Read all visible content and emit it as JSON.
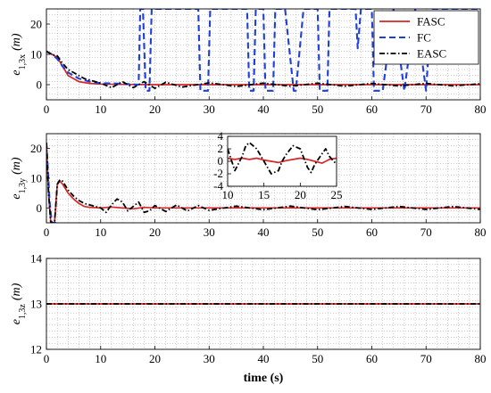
{
  "colors": {
    "FASC": "#d62728",
    "FC": "#1f3fd6",
    "EASC": "#000000",
    "grid": "#9a9a9a"
  },
  "chart_data": [
    {
      "type": "line",
      "ylabel_main": "e",
      "ylabel_sub": "1,3x",
      "ylabel_unit": "(m)",
      "xlim": [
        0,
        80
      ],
      "ylim": [
        -5,
        25
      ],
      "xticks": [
        0,
        10,
        20,
        30,
        40,
        50,
        60,
        70,
        80
      ],
      "yticks": [
        0,
        10,
        20
      ],
      "grid": true,
      "legend_position": "top-right",
      "series": [
        {
          "name": "FASC",
          "style": "solid",
          "x": [
            0,
            1,
            2,
            3,
            4,
            5,
            6,
            8,
            10,
            14,
            20,
            30,
            40,
            50,
            60,
            70,
            80
          ],
          "y": [
            11,
            10,
            9,
            6,
            3,
            2,
            1,
            0.4,
            0.2,
            0.1,
            0,
            0,
            0,
            0,
            0,
            0,
            0
          ]
        },
        {
          "name": "FC",
          "style": "dashed",
          "x": [
            0,
            1,
            2,
            3,
            4,
            5,
            6,
            7,
            8,
            10,
            14,
            17,
            17.3,
            17.8,
            18.3,
            19,
            19.4,
            28,
            28.4,
            29.8,
            30.2,
            31,
            37,
            37.4,
            38.2,
            38.6,
            40,
            40.4,
            41.8,
            42.2,
            44,
            45.6,
            46,
            47.4,
            47.8,
            50,
            50.4,
            51.8,
            52.2,
            57,
            57.4,
            58,
            60,
            60.4,
            62,
            64,
            66,
            68,
            70,
            71,
            80
          ],
          "y": [
            11,
            10,
            8.5,
            6,
            4,
            3,
            2,
            1.5,
            1,
            0.5,
            0.3,
            0,
            25,
            25,
            -2,
            -2,
            25,
            25,
            -2,
            -2,
            25,
            25,
            25,
            -2,
            -2,
            25,
            25,
            -2,
            -2,
            25,
            25,
            -2,
            -2,
            25,
            25,
            25,
            -2,
            -2,
            25,
            25,
            12,
            25,
            25,
            -2,
            -2,
            25,
            -2,
            25,
            -2,
            25,
            25
          ]
        },
        {
          "name": "EASC",
          "style": "dashdot",
          "x": [
            0,
            1,
            2,
            3,
            4,
            5,
            6,
            7,
            8,
            10,
            12,
            14,
            16,
            18,
            20,
            22,
            25,
            30,
            35,
            40,
            45,
            50,
            55,
            60,
            65,
            70,
            75,
            80
          ],
          "y": [
            11,
            10,
            9.5,
            7,
            5,
            4,
            3,
            2,
            1.5,
            0.5,
            -1,
            1,
            -1,
            1,
            -1.2,
            0.8,
            -0.8,
            0.6,
            -0.6,
            0.5,
            -0.5,
            0.5,
            -0.5,
            0.4,
            -0.4,
            0.4,
            -0.4,
            0.3
          ]
        }
      ]
    },
    {
      "type": "line",
      "ylabel_main": "e",
      "ylabel_sub": "1,3y",
      "ylabel_unit": "(m)",
      "xlim": [
        0,
        80
      ],
      "ylim": [
        -5,
        25
      ],
      "xticks": [
        0,
        10,
        20,
        30,
        40,
        50,
        60,
        70,
        80
      ],
      "yticks": [
        0,
        10,
        20
      ],
      "grid": true,
      "series": [
        {
          "name": "FASC",
          "style": "solid",
          "x": [
            0,
            0.4,
            0.8,
            1.5,
            2,
            2.5,
            3,
            4,
            5,
            6,
            7,
            8,
            10,
            12,
            14,
            16,
            18,
            20,
            25,
            30,
            40,
            50,
            60,
            70,
            80
          ],
          "y": [
            22,
            5,
            -5,
            -5,
            8,
            9,
            8,
            5,
            3,
            1.5,
            0.5,
            0.2,
            0,
            0.3,
            0,
            -0.3,
            0.2,
            0,
            0,
            0,
            0,
            0,
            0,
            0,
            0
          ]
        },
        {
          "name": "FC",
          "style": "dashed",
          "x": [
            0,
            0.3,
            0.6,
            1,
            1.5,
            2
          ],
          "y": [
            22,
            12,
            2,
            -5,
            -5,
            -5
          ]
        },
        {
          "name": "EASC",
          "style": "dashdot",
          "x": [
            0,
            0.4,
            0.8,
            1.5,
            2,
            2.5,
            3,
            4,
            5,
            6,
            7,
            8,
            9,
            10,
            11,
            12,
            13,
            14,
            15,
            16,
            17,
            18,
            19,
            20,
            22,
            24,
            26,
            28,
            30,
            35,
            40,
            45,
            50,
            55,
            60,
            65,
            70,
            75,
            80
          ],
          "y": [
            22,
            5,
            -5,
            -5,
            8,
            9.5,
            9,
            6,
            4,
            2.5,
            1.5,
            1,
            0.5,
            0,
            -1.5,
            1,
            3,
            2,
            -1,
            0.5,
            2,
            -1.5,
            -1,
            0.8,
            -1.2,
            1,
            -1,
            0.8,
            -0.8,
            0.6,
            -0.6,
            0.6,
            -0.6,
            0.5,
            -0.5,
            0.5,
            -0.5,
            0.5,
            -0.5
          ]
        }
      ],
      "inset": {
        "xlim": [
          10,
          25
        ],
        "ylim": [
          -4,
          4
        ],
        "xticks": [
          10,
          15,
          20,
          25
        ],
        "yticks": [
          -4,
          -2,
          0,
          2,
          4
        ],
        "series": [
          {
            "name": "FASC",
            "style": "solid",
            "x": [
              10,
              11,
              12,
              13,
              14,
              15,
              16,
              17,
              18,
              19,
              20,
              21,
              22,
              23,
              24,
              25
            ],
            "y": [
              0.5,
              0.3,
              0.5,
              0.3,
              0.5,
              0.2,
              0,
              -0.2,
              0.1,
              0.3,
              0.5,
              0.3,
              0,
              -0.3,
              0.3,
              0.5
            ]
          },
          {
            "name": "EASC",
            "style": "dashdot",
            "x": [
              10,
              11,
              12,
              12.5,
              13,
              14,
              15,
              16,
              17,
              17.5,
              18,
              19,
              20,
              21,
              21.5,
              22,
              23,
              23.5,
              24,
              25
            ],
            "y": [
              2,
              -1.5,
              0.8,
              2.5,
              3,
              2,
              0,
              -2,
              -1.5,
              0,
              1,
              2.5,
              2,
              -1,
              -1.8,
              -0.5,
              1.2,
              2,
              0.8,
              -0.5
            ]
          }
        ]
      }
    },
    {
      "type": "line",
      "ylabel_main": "e",
      "ylabel_sub": "1,3z",
      "ylabel_unit": "(m)",
      "xlabel": "time (s)",
      "xlim": [
        0,
        80
      ],
      "ylim": [
        12,
        14
      ],
      "xticks": [
        0,
        10,
        20,
        30,
        40,
        50,
        60,
        70,
        80
      ],
      "yticks": [
        12,
        13,
        14
      ],
      "grid": true,
      "series": [
        {
          "name": "FASC",
          "style": "solid",
          "x": [
            0,
            80
          ],
          "y": [
            13,
            13
          ]
        },
        {
          "name": "EASC",
          "style": "dashdot",
          "x": [
            0,
            80
          ],
          "y": [
            13,
            13
          ]
        }
      ]
    }
  ]
}
